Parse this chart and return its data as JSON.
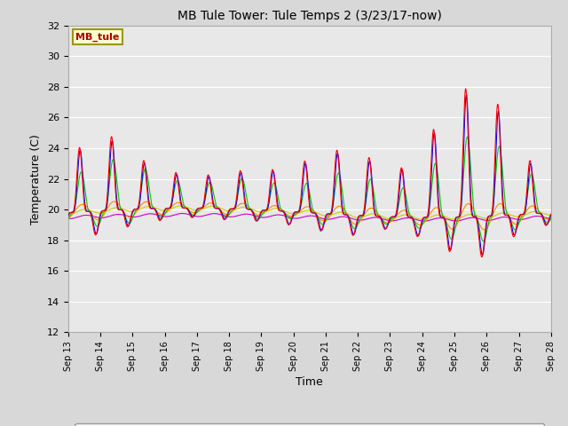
{
  "title": "MB Tule Tower: Tule Temps 2 (3/23/17-now)",
  "xlabel": "Time",
  "ylabel": "Temperature (C)",
  "ylim": [
    12,
    32
  ],
  "yticks": [
    12,
    14,
    16,
    18,
    20,
    22,
    24,
    26,
    28,
    30,
    32
  ],
  "fig_bg_color": "#d8d8d8",
  "plot_bg_color": "#e8e8e8",
  "legend_label": "MB_tule",
  "legend_bg": "#ffffcc",
  "legend_border": "#999900",
  "series_colors": {
    "Tul2_Tw+2": "#ff0000",
    "Tul2_Ts-2": "#0000ff",
    "Tul2_Ts-4": "#00cc00",
    "Tul2_Ts-8": "#ff8800",
    "Tul2_Ts-16": "#cccc00",
    "Tul2_Ts-32": "#cc00cc"
  },
  "x_start": 13,
  "x_end": 28,
  "x_ticks": [
    13,
    14,
    15,
    16,
    17,
    18,
    19,
    20,
    21,
    22,
    23,
    24,
    25,
    26,
    27,
    28
  ],
  "x_tick_labels": [
    "Sep 13",
    "Sep 14",
    "Sep 15",
    "Sep 16",
    "Sep 17",
    "Sep 18",
    "Sep 19",
    "Sep 20",
    "Sep 21",
    "Sep 22",
    "Sep 23",
    "Sep 24",
    "Sep 25",
    "Sep 26",
    "Sep 27",
    "Sep 28"
  ]
}
